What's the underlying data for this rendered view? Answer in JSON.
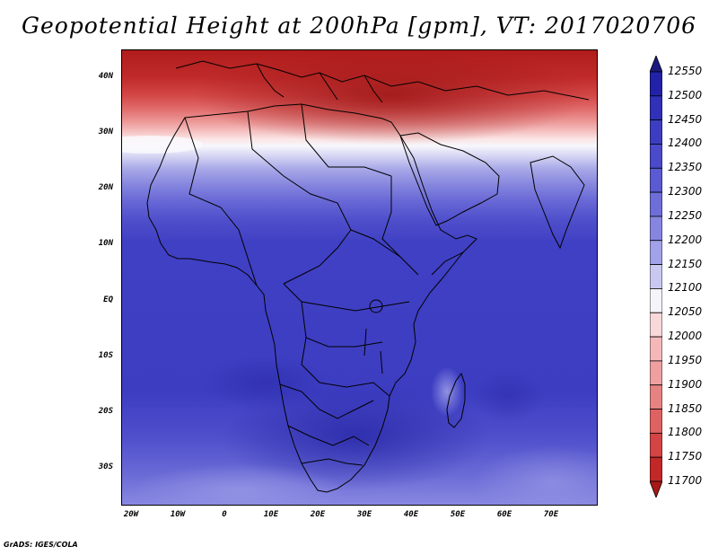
{
  "title": "Geopotential Height at 200hPa [gpm], VT: 2017020706",
  "credit": "GrADS: IGES/COLA",
  "map": {
    "lat_ticks": [
      "40N",
      "30N",
      "20N",
      "10N",
      "EQ",
      "10S",
      "20S",
      "30S"
    ],
    "lon_ticks": [
      "20W",
      "10W",
      "0",
      "10E",
      "20E",
      "30E",
      "40E",
      "50E",
      "60E",
      "70E"
    ],
    "lat_range": [
      -37,
      45
    ],
    "lon_range": [
      -22,
      80
    ],
    "projection": "latlon"
  },
  "colorbar": {
    "labels": [
      "12550",
      "12500",
      "12450",
      "12400",
      "12350",
      "12300",
      "12250",
      "12200",
      "12150",
      "12100",
      "12050",
      "12000",
      "11950",
      "11900",
      "11850",
      "11800",
      "11750",
      "11700"
    ],
    "colors": [
      "#1a1a80",
      "#2222a8",
      "#3030b8",
      "#3d3dc2",
      "#4a4acb",
      "#5a5ad2",
      "#6e6ed9",
      "#8686e0",
      "#a2a2e8",
      "#c8c8f0",
      "#f4f4fb",
      "#f8d8d8",
      "#f4b8b8",
      "#eea0a0",
      "#e68282",
      "#de6262",
      "#d44444",
      "#c22828",
      "#a81818"
    ]
  }
}
